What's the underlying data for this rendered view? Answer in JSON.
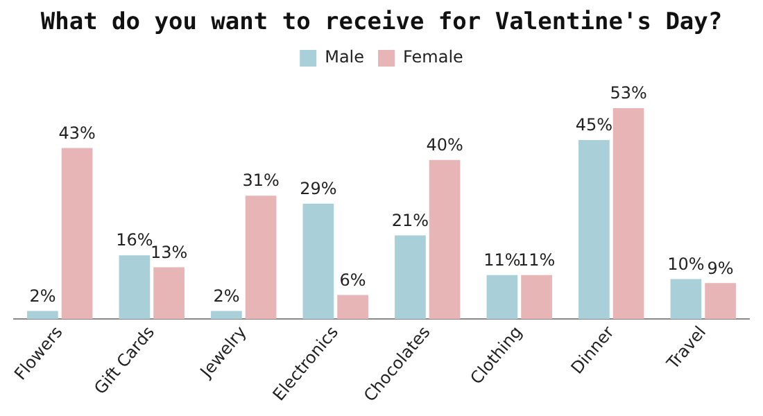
{
  "chart_data": {
    "type": "bar",
    "title": "What do you want to receive for Valentine's Day?",
    "categories": [
      "Flowers",
      "Gift Cards",
      "Jewelry",
      "Electronics",
      "Chocolates",
      "Clothing",
      "Dinner",
      "Travel"
    ],
    "series": [
      {
        "name": "Male",
        "color": "#a9d0d8",
        "values": [
          2,
          16,
          2,
          29,
          21,
          11,
          45,
          10
        ],
        "value_labels": [
          "2%",
          "16%",
          "2%",
          "29%",
          "21%",
          "11%",
          "45%",
          "10%"
        ]
      },
      {
        "name": "Female",
        "color": "#e8b5b7",
        "values": [
          43,
          13,
          31,
          6,
          40,
          11,
          53,
          9
        ],
        "value_labels": [
          "43%",
          "13%",
          "31%",
          "6%",
          "40%",
          "11%",
          "53%",
          "9%"
        ]
      }
    ],
    "legend": "top",
    "grid": false,
    "tick_labels": "x"
  }
}
